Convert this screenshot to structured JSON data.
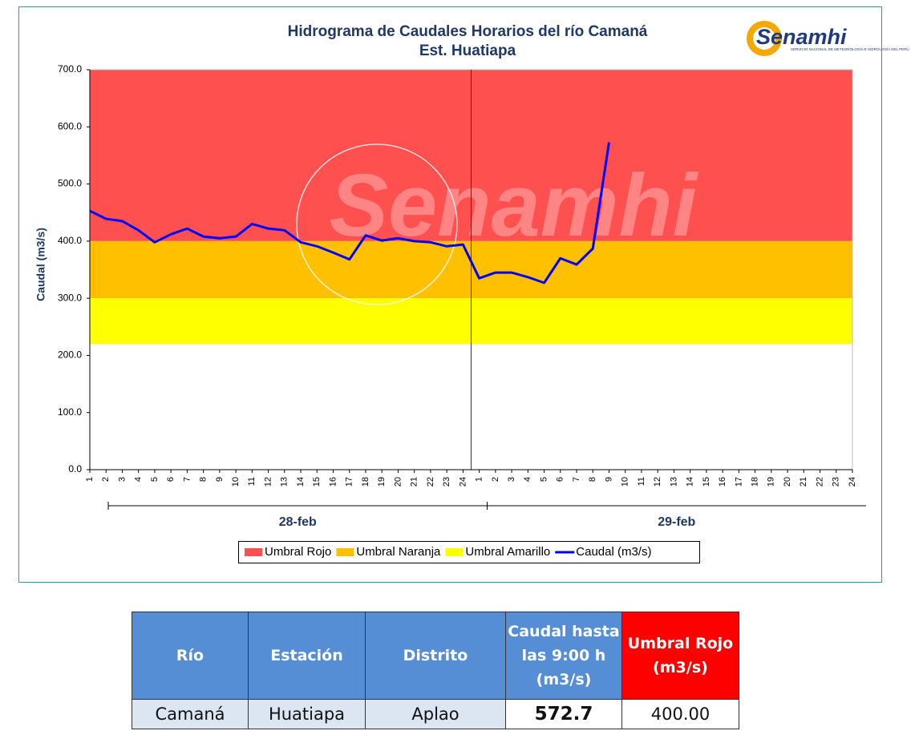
{
  "chart_data": {
    "type": "line",
    "title": "Hidrograma de Caudales Horarios del río Camaná",
    "subtitle": "Est. Huatiapa",
    "y_label": "Caudal (m3/s)",
    "watermark": "Senamhi",
    "logo": {
      "name": "Senamhi",
      "tagline": "SERVICIO NACIONAL DE METEOROLOGÍA E HIDROLOGÍA DEL PERÚ"
    },
    "categories": [
      "1",
      "2",
      "3",
      "4",
      "5",
      "6",
      "7",
      "8",
      "9",
      "10",
      "11",
      "12",
      "13",
      "14",
      "15",
      "16",
      "17",
      "18",
      "19",
      "20",
      "21",
      "22",
      "23",
      "24",
      "1",
      "2",
      "3",
      "4",
      "5",
      "6",
      "7",
      "8",
      "9",
      "10",
      "11",
      "12",
      "13",
      "14",
      "15",
      "16",
      "17",
      "18",
      "19",
      "20",
      "21",
      "22",
      "23",
      "24"
    ],
    "category_groups": [
      "28-feb",
      "29-feb"
    ],
    "ylim": [
      0,
      700
    ],
    "yticks": [
      {
        "value": 0,
        "label": "0.0"
      },
      {
        "value": 100,
        "label": "100.0"
      },
      {
        "value": 200,
        "label": "200.0"
      },
      {
        "value": 300,
        "label": "300.0"
      },
      {
        "value": 400,
        "label": "400.0"
      },
      {
        "value": 500,
        "label": "500.0"
      },
      {
        "value": 600,
        "label": "600.0"
      },
      {
        "value": 700,
        "label": "700.0"
      }
    ],
    "grid": false,
    "series": [
      {
        "name": "Umbral Rojo",
        "color": "#ff5050",
        "value": 400
      },
      {
        "name": "Umbral Naranja",
        "color": "#ffc000",
        "value": 300
      },
      {
        "name": "Umbral Amarillo",
        "color": "#ffff00",
        "value": 220
      },
      {
        "name": "Caudal (m3/s)",
        "color": "#0000ff",
        "values": [
          453,
          439,
          435,
          419,
          398,
          412,
          422,
          408,
          405,
          408,
          430,
          422,
          419,
          398,
          391,
          380,
          368,
          410,
          401,
          405,
          400,
          398,
          391,
          394,
          335,
          345,
          345,
          337,
          327,
          370,
          359,
          387,
          572.7,
          null,
          null,
          null,
          null,
          null,
          null,
          null,
          null,
          null,
          null,
          null,
          null,
          null,
          null,
          null
        ]
      }
    ]
  },
  "table": {
    "headers": [
      "Río",
      "Estación",
      "Distrito",
      "Caudal hasta las 9:00 h (m3/s)",
      "Umbral Rojo (m3/s)"
    ],
    "rows": [
      [
        "Camaná",
        "Huatiapa",
        "Aplao",
        "572.7",
        "400.00"
      ]
    ]
  }
}
